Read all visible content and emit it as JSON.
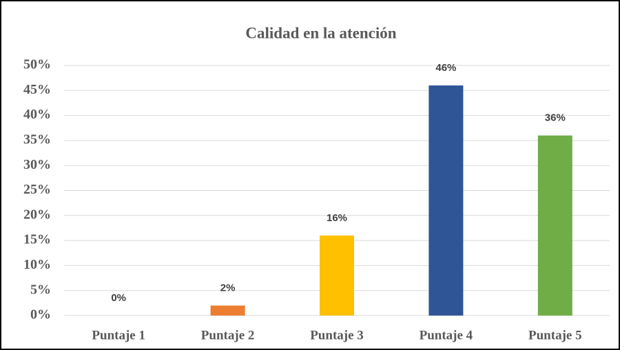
{
  "chart_data": {
    "type": "bar",
    "title": "Calidad en la atención",
    "categories": [
      "Puntaje 1",
      "Puntaje 2",
      "Puntaje 3",
      "Puntaje 4",
      "Puntaje 5"
    ],
    "values": [
      0,
      2,
      16,
      46,
      36
    ],
    "value_labels": [
      "0%",
      "2%",
      "16%",
      "46%",
      "36%"
    ],
    "colors": [
      "#4472c4",
      "#ed7d31",
      "#ffc000",
      "#2f5597",
      "#70ad47"
    ],
    "ylim": [
      0,
      50
    ],
    "yticks": [
      {
        "value": 0,
        "label": "0%"
      },
      {
        "value": 5,
        "label": "5%"
      },
      {
        "value": 10,
        "label": "10%"
      },
      {
        "value": 15,
        "label": "15%"
      },
      {
        "value": 20,
        "label": "20%"
      },
      {
        "value": 25,
        "label": "25%"
      },
      {
        "value": 30,
        "label": "30%"
      },
      {
        "value": 35,
        "label": "35%"
      },
      {
        "value": 40,
        "label": "40%"
      },
      {
        "value": 45,
        "label": "45%"
      },
      {
        "value": 50,
        "label": "50%"
      }
    ],
    "grid": true
  }
}
